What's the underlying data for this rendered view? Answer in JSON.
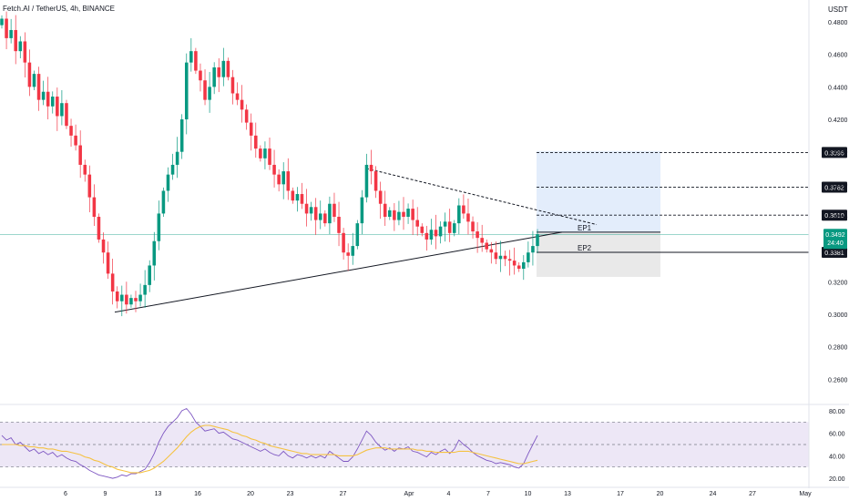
{
  "header": {
    "title": "Fetch.AI / TetherUS, 4h, BINANCE",
    "currency": "USDT"
  },
  "colors": {
    "up": "#089981",
    "down": "#f23645",
    "rsi_line": "#7e57c2",
    "rsi_ma": "#f5c242",
    "rsi_band": "#ede7f6",
    "target_zone": "#e3edfb",
    "stop_zone": "#e9e9e9",
    "price_badge": "#089981",
    "trendline": "#131722"
  },
  "chart_data": [
    {
      "type": "candlestick",
      "title": "Fetch.AI / TetherUS, 4h, BINANCE",
      "y_unit": "USDT",
      "ylim": [
        0.245,
        0.4935
      ],
      "y_ticks": [
        "0.2600",
        "0.2800",
        "0.3000",
        "0.3200",
        "0.3400",
        "0.3600",
        "0.3800",
        "0.4000",
        "0.4200",
        "0.4400",
        "0.4600",
        "0.4800"
      ],
      "x_ticks": [
        "6",
        "9",
        "13",
        "16",
        "20",
        "23",
        "27",
        "Apr",
        "4",
        "7",
        "10",
        "13",
        "17",
        "20",
        "24",
        "27",
        "May"
      ],
      "grid": false,
      "closes_approx": [
        0.482,
        0.47,
        0.475,
        0.462,
        0.468,
        0.455,
        0.44,
        0.448,
        0.432,
        0.437,
        0.428,
        0.434,
        0.422,
        0.43,
        0.416,
        0.41,
        0.404,
        0.392,
        0.386,
        0.372,
        0.36,
        0.346,
        0.338,
        0.325,
        0.314,
        0.308,
        0.312,
        0.306,
        0.31,
        0.308,
        0.312,
        0.318,
        0.33,
        0.345,
        0.362,
        0.376,
        0.386,
        0.392,
        0.4,
        0.42,
        0.455,
        0.462,
        0.45,
        0.444,
        0.432,
        0.44,
        0.452,
        0.446,
        0.456,
        0.446,
        0.436,
        0.432,
        0.426,
        0.418,
        0.41,
        0.402,
        0.396,
        0.402,
        0.392,
        0.386,
        0.38,
        0.388,
        0.376,
        0.37,
        0.374,
        0.368,
        0.362,
        0.366,
        0.358,
        0.362,
        0.356,
        0.368,
        0.36,
        0.35,
        0.338,
        0.336,
        0.342,
        0.356,
        0.372,
        0.392,
        0.388,
        0.376,
        0.368,
        0.36,
        0.364,
        0.358,
        0.363,
        0.36,
        0.365,
        0.358,
        0.354,
        0.35,
        0.346,
        0.352,
        0.348,
        0.354,
        0.357,
        0.35,
        0.356,
        0.367,
        0.362,
        0.357,
        0.351,
        0.347,
        0.344,
        0.34,
        0.338,
        0.334,
        0.336,
        0.334,
        0.333,
        0.33,
        0.328,
        0.332,
        0.338,
        0.342,
        0.3492
      ],
      "levels": [
        {
          "label": "0.3996",
          "value": 0.3996,
          "style": "dashed"
        },
        {
          "label": "0.3782",
          "value": 0.3782,
          "style": "dashed"
        },
        {
          "label": "0.3610",
          "value": 0.361,
          "style": "dashed"
        },
        {
          "label": "0.3381",
          "value": 0.3381,
          "style": "solid"
        }
      ],
      "entries": [
        {
          "label": "EP1",
          "value": 0.3505
        },
        {
          "label": "EP2",
          "value": 0.3381
        }
      ],
      "current_price": {
        "price": "0.3492",
        "countdown": "24:40",
        "value": 0.3492
      },
      "position": {
        "target_top": 0.4005,
        "entry": 0.3505,
        "stop": 0.323
      },
      "trendlines": [
        {
          "style": "solid",
          "from": {
            "x": "9",
            "y": 0.3013
          },
          "to": {
            "x": "12 Apr",
            "y": 0.3505
          }
        },
        {
          "style": "dashed",
          "from": {
            "x": "28 Mar",
            "y": 0.3898
          },
          "to": {
            "x": "14 Apr",
            "y": 0.3552
          }
        }
      ]
    },
    {
      "type": "line",
      "title": "RSI",
      "ylim": [
        16,
        84
      ],
      "y_ticks": [
        "80.00",
        "60.00",
        "40.00",
        "20.00"
      ],
      "bands": [
        70,
        50,
        30
      ],
      "series": [
        {
          "role": "rsi",
          "values": [
            58,
            54,
            56,
            50,
            52,
            48,
            44,
            46,
            42,
            44,
            41,
            43,
            39,
            41,
            38,
            36,
            35,
            32,
            30,
            27,
            25,
            23,
            22,
            21,
            20,
            21,
            23,
            22,
            24,
            24,
            26,
            28,
            34,
            42,
            52,
            60,
            66,
            70,
            74,
            80,
            82,
            77,
            70,
            66,
            62,
            63,
            64,
            60,
            61,
            58,
            55,
            54,
            52,
            50,
            48,
            46,
            44,
            46,
            43,
            41,
            40,
            44,
            40,
            38,
            41,
            40,
            38,
            40,
            38,
            40,
            38,
            44,
            41,
            38,
            35,
            35,
            39,
            46,
            54,
            62,
            58,
            52,
            48,
            45,
            47,
            44,
            47,
            46,
            48,
            44,
            43,
            41,
            39,
            43,
            41,
            44,
            46,
            42,
            46,
            54,
            50,
            47,
            43,
            40,
            38,
            36,
            35,
            33,
            34,
            33,
            32,
            30,
            29,
            33,
            42,
            50,
            58
          ]
        },
        {
          "role": "ma",
          "values": [
            50,
            50,
            50,
            50,
            49,
            49,
            48,
            48,
            47,
            47,
            46,
            46,
            45,
            44,
            44,
            43,
            42,
            41,
            39,
            38,
            36,
            35,
            33,
            31,
            30,
            28,
            27,
            26,
            25,
            25,
            25,
            26,
            27,
            29,
            32,
            35,
            39,
            43,
            47,
            52,
            57,
            61,
            64,
            66,
            67,
            67,
            66,
            65,
            64,
            63,
            61,
            60,
            58,
            57,
            55,
            54,
            52,
            51,
            49,
            48,
            47,
            46,
            45,
            44,
            43,
            42,
            42,
            41,
            41,
            41,
            41,
            41,
            41,
            40,
            40,
            40,
            40,
            41,
            43,
            45,
            46,
            47,
            47,
            47,
            46,
            46,
            46,
            46,
            46,
            46,
            45,
            45,
            44,
            44,
            43,
            43,
            43,
            43,
            43,
            44,
            44,
            44,
            43,
            42,
            41,
            40,
            39,
            38,
            37,
            36,
            35,
            34,
            33,
            33,
            34,
            35,
            36
          ]
        }
      ]
    }
  ]
}
